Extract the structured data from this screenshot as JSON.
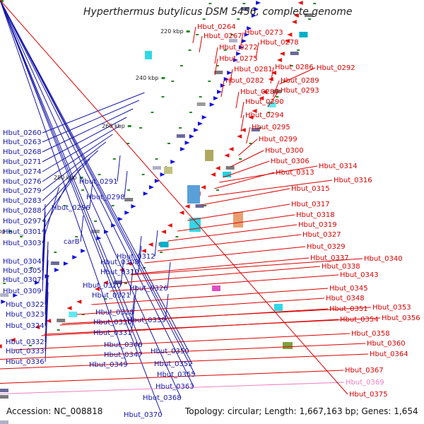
{
  "title": "Hyperthermus butylicus DSM 5456, complete genome",
  "footer": {
    "accession": "Accession: NC_008818",
    "topology": "Topology: circular; Length: 1,667,163 bp; Genes: 1,654"
  },
  "colors": {
    "forward_strand": "#1010e0",
    "reverse_strand": "#e81010",
    "forward_label": "#1616aa",
    "reverse_label": "#dd0000",
    "highlight_label": "#f080c0",
    "backbone": "#8a8a8a",
    "tick": "#2a8a2a"
  },
  "scale_marks": [
    "220 kbp",
    "240 kbp",
    "260 kbp",
    "280 kbp",
    "300 kbp",
    "320 kbp",
    "340 kbp",
    "360 kbp"
  ],
  "left_labels": [
    "Hbut_0260",
    "Hbut_0263",
    "Hbut_0268",
    "Hbut_0271",
    "Hbut_0274",
    "Hbut_0276",
    "Hbut_0279",
    "Hbut_0283",
    "Hbut_0288",
    "Hbut_0297",
    "Hbut_0301",
    "Hbut_0303",
    "Hbut_0304",
    "Hbut_0305",
    "Hbut_0307",
    "Hbut_0309",
    "Hbut_0322",
    "Hbut_0323",
    "Hbut_0324",
    "Hbut_0332",
    "Hbut_0333",
    "Hbut_0336"
  ],
  "mid_labels": [
    "Hbut_0291",
    "Hbut_0298",
    "Hbut_0296",
    "carB",
    "Hbut_0308",
    "Hbut_0310",
    "Hbut_0312",
    "Hbut_0320",
    "Hbut_0326",
    "Hbut_0321",
    "Hbut_0328",
    "Hbut_0330",
    "Hbut_0339",
    "Hbut_0331",
    "Hbut_0346",
    "Hbut_0347",
    "Hbut_0350",
    "Hbut_0349",
    "Hbut_0352",
    "Hbut_0355",
    "Hbut_0363",
    "Hbut_0368",
    "Hbut_0370"
  ],
  "right_labels": [
    "Hbut_0264",
    "Hbut_0267",
    "Hbut_0273",
    "Hbut_0272",
    "Hbut_0278",
    "Hbut_0275",
    "Hbut_0281",
    "Hbut_0286",
    "Hbut_0292",
    "Hbut_0282",
    "Hbut_0289",
    "Hbut_0287",
    "Hbut_0293",
    "Hbut_0290",
    "Hbut_0294",
    "Hbut_0295",
    "Hbut_0299",
    "Hbut_0300",
    "Hbut_0306",
    "Hbut_0314",
    "Hbut_0313",
    "Hbut_0316",
    "Hbut_0315",
    "Hbut_0317",
    "Hbut_0318",
    "Hbut_0319",
    "Hbut_0327",
    "Hbut_0329",
    "Hbut_0337",
    "Hbut_0340",
    "Hbut_0338",
    "Hbut_0343",
    "Hbut_0345",
    "Hbut_0348",
    "Hbut_0351",
    "Hbut_0353",
    "Hbut_0354",
    "Hbut_0356",
    "Hbut_0358",
    "Hbut_0360",
    "Hbut_0364",
    "Hbut_0367",
    "Hbut_0369",
    "Hbut_0375"
  ]
}
